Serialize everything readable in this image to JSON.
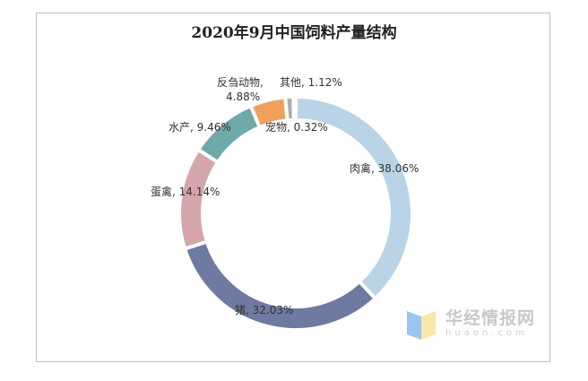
{
  "chart_data": {
    "type": "pie",
    "donut": true,
    "title": "2020年9月中国饲料产量结构",
    "categories": [
      "肉禽",
      "猪",
      "蛋禽",
      "水产",
      "反刍动物",
      "其他",
      "宠物"
    ],
    "values": [
      38.06,
      32.03,
      14.14,
      9.46,
      4.88,
      1.12,
      0.32
    ],
    "labels": [
      "肉禽, 38.06%",
      "猪, 32.03%",
      "蛋禽, 14.14%",
      "水产, 9.46%",
      "反刍动物, 4.88%",
      "其他, 1.12%",
      "宠物, 0.32%"
    ],
    "colors": [
      "#b9d4e6",
      "#6e7aa0",
      "#d5a6a9",
      "#70a9aa",
      "#f0a05c",
      "#a9aeb4",
      "#dfe6ec"
    ],
    "legend": "none"
  },
  "watermark": {
    "name": "华经情报网",
    "domain": "huaon.com"
  }
}
